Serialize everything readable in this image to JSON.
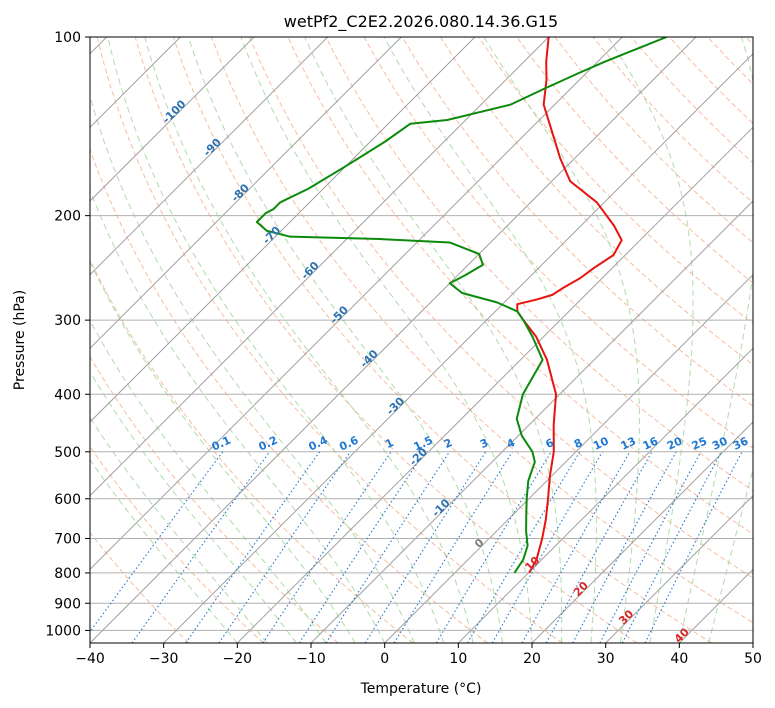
{
  "chart_data": {
    "type": "line",
    "title": "wetPf2_C2E2.2026.080.14.36.G15",
    "xlabel": "Temperature (°C)",
    "ylabel": "Pressure (hPa)",
    "xlim": [
      -40,
      50
    ],
    "ylim": [
      1050,
      100
    ],
    "y_scale": "log",
    "grid": true,
    "x_ticks": [
      -40,
      -30,
      -20,
      -10,
      0,
      10,
      20,
      30,
      40,
      50
    ],
    "y_ticks": [
      100,
      200,
      300,
      400,
      500,
      600,
      700,
      800,
      900,
      1000
    ],
    "isotherm_skew_degrees": 45,
    "colors": {
      "temperature": "#e8130f",
      "dewpoint": "#0b8a0b",
      "dry_adiabats": "#f4a582",
      "moist_adiabats": "#a6d8a0",
      "mixing_ratio": "#1f78d1",
      "isotherms": "#a0a0a0",
      "isotherm_labels": "#2c72b0",
      "dry_adiabat_labels": "#d62728",
      "highlight_isotherm_0": "#7f7f7f"
    },
    "series": [
      {
        "name": "temperature",
        "points": [
          [
            800,
            10.1
          ],
          [
            760,
            9.3
          ],
          [
            700,
            7.2
          ],
          [
            650,
            5.1
          ],
          [
            600,
            2.6
          ],
          [
            550,
            -0.2
          ],
          [
            500,
            -3.0
          ],
          [
            450,
            -6.7
          ],
          [
            400,
            -10.5
          ],
          [
            350,
            -16.4
          ],
          [
            320,
            -21.0
          ],
          [
            300,
            -25.0
          ],
          [
            290,
            -27.0
          ],
          [
            282,
            -28.0
          ],
          [
            277,
            -26.0
          ],
          [
            272,
            -24.5
          ],
          [
            265,
            -24.0
          ],
          [
            255,
            -23.0
          ],
          [
            245,
            -22.5
          ],
          [
            233,
            -21.6
          ],
          [
            220,
            -22.5
          ],
          [
            208,
            -25.5
          ],
          [
            190,
            -31.0
          ],
          [
            175,
            -37.5
          ],
          [
            160,
            -42.0
          ],
          [
            145,
            -46.5
          ],
          [
            130,
            -51.5
          ],
          [
            118,
            -54.5
          ],
          [
            110,
            -57.0
          ],
          [
            100,
            -60.0
          ]
        ]
      },
      {
        "name": "dewpoint",
        "points": [
          [
            800,
            8.1
          ],
          [
            760,
            7.5
          ],
          [
            720,
            6.2
          ],
          [
            680,
            4.0
          ],
          [
            640,
            1.9
          ],
          [
            600,
            -0.3
          ],
          [
            560,
            -2.5
          ],
          [
            520,
            -4.2
          ],
          [
            500,
            -5.9
          ],
          [
            470,
            -9.5
          ],
          [
            440,
            -12.5
          ],
          [
            400,
            -15.0
          ],
          [
            350,
            -17.0
          ],
          [
            320,
            -21.5
          ],
          [
            300,
            -25.0
          ],
          [
            290,
            -27.0
          ],
          [
            280,
            -31.0
          ],
          [
            270,
            -37.0
          ],
          [
            260,
            -40.0
          ],
          [
            252,
            -39.0
          ],
          [
            242,
            -38.0
          ],
          [
            232,
            -40.0
          ],
          [
            222,
            -45.5
          ],
          [
            219,
            -55.5
          ],
          [
            217,
            -68.0
          ],
          [
            212,
            -72.0
          ],
          [
            205,
            -74.5
          ],
          [
            198,
            -74.5
          ],
          [
            195,
            -74.0
          ],
          [
            190,
            -74.0
          ],
          [
            180,
            -72.0
          ],
          [
            165,
            -70.0
          ],
          [
            150,
            -68.0
          ],
          [
            140,
            -67.0
          ],
          [
            138,
            -62.5
          ],
          [
            130,
            -56.0
          ],
          [
            122,
            -53.5
          ],
          [
            115,
            -51.0
          ],
          [
            110,
            -49.0
          ],
          [
            100,
            -44.0
          ]
        ]
      }
    ],
    "isotherm_labels": [
      "-100",
      "-90",
      "-80",
      "-70",
      "-60",
      "-50",
      "-40",
      "-30",
      "-20",
      "-10",
      "0",
      "10",
      "20",
      "30",
      "40"
    ],
    "mixing_ratio_labels": [
      "0.1",
      "0.2",
      "0.4",
      "0.6",
      "1",
      "1.5",
      "2",
      "3",
      "4",
      "6",
      "8",
      "10",
      "13",
      "16",
      "20",
      "25",
      "30",
      "36"
    ]
  }
}
